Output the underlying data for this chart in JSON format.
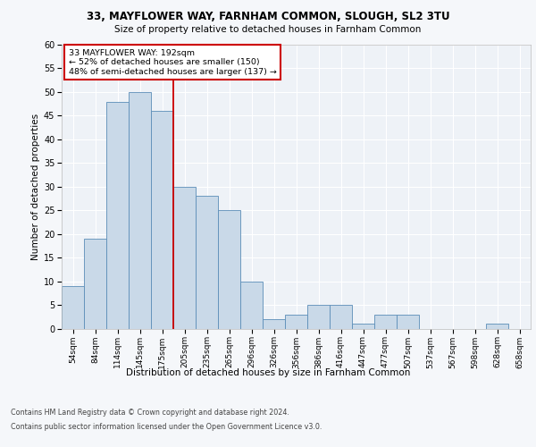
{
  "title1": "33, MAYFLOWER WAY, FARNHAM COMMON, SLOUGH, SL2 3TU",
  "title2": "Size of property relative to detached houses in Farnham Common",
  "xlabel": "Distribution of detached houses by size in Farnham Common",
  "ylabel": "Number of detached properties",
  "categories": [
    "54sqm",
    "84sqm",
    "114sqm",
    "145sqm",
    "175sqm",
    "205sqm",
    "235sqm",
    "265sqm",
    "296sqm",
    "326sqm",
    "356sqm",
    "386sqm",
    "416sqm",
    "447sqm",
    "477sqm",
    "507sqm",
    "537sqm",
    "567sqm",
    "598sqm",
    "628sqm",
    "658sqm"
  ],
  "values": [
    9,
    19,
    48,
    50,
    46,
    30,
    28,
    25,
    10,
    2,
    3,
    5,
    5,
    1,
    3,
    3,
    0,
    0,
    0,
    1,
    0
  ],
  "bar_color": "#c9d9e8",
  "bar_edge_color": "#5b8db8",
  "vline_x": 4.5,
  "vline_color": "#cc0000",
  "annotation_line1": "33 MAYFLOWER WAY: 192sqm",
  "annotation_line2": "← 52% of detached houses are smaller (150)",
  "annotation_line3": "48% of semi-detached houses are larger (137) →",
  "annotation_box_color": "#ffffff",
  "annotation_box_edge": "#cc0000",
  "ylim": [
    0,
    60
  ],
  "yticks": [
    0,
    5,
    10,
    15,
    20,
    25,
    30,
    35,
    40,
    45,
    50,
    55,
    60
  ],
  "background_color": "#eef2f7",
  "grid_color": "#ffffff",
  "footer1": "Contains HM Land Registry data © Crown copyright and database right 2024.",
  "footer2": "Contains public sector information licensed under the Open Government Licence v3.0."
}
